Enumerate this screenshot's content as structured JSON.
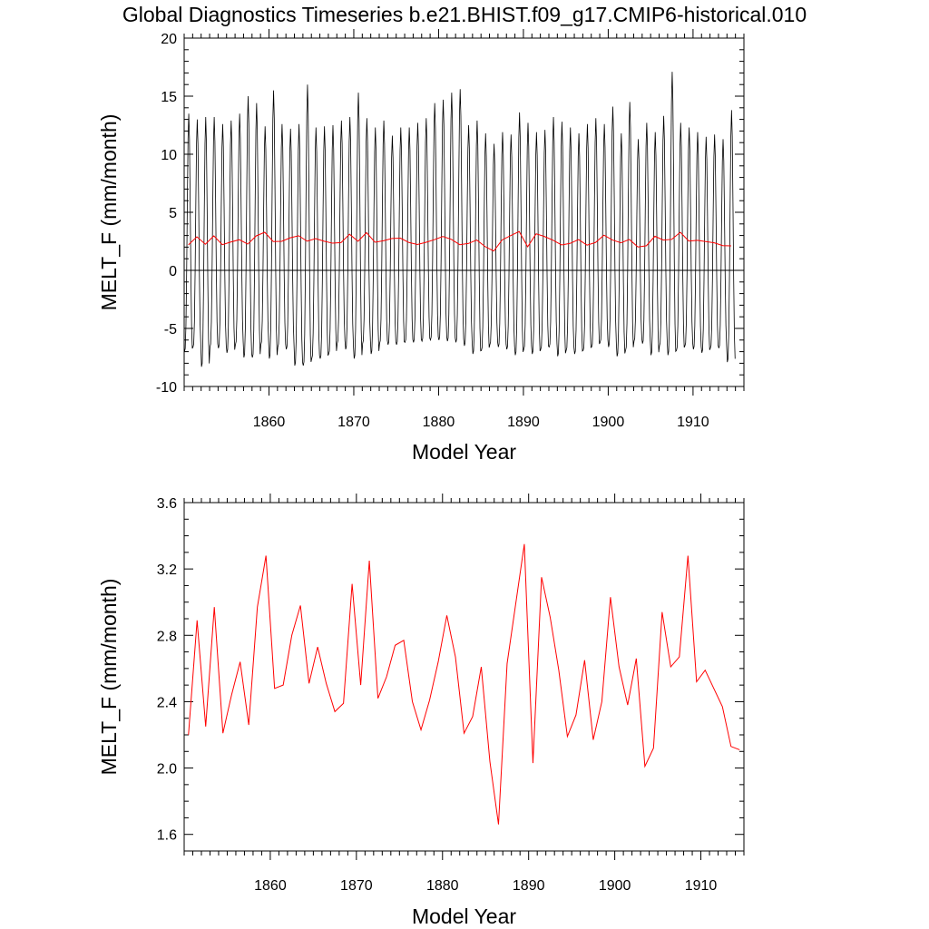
{
  "title": "Global Diagnostics Timeseries b.e21.BHIST.f09_g17.CMIP6-historical.010",
  "colors": {
    "monthly": "#000000",
    "annual": "#ff0000",
    "axes": "#000000"
  },
  "chart_data": [
    {
      "type": "line",
      "xlabel": "Model Year",
      "ylabel": "MELT_F (mm/month)",
      "xlim": [
        1850,
        1916
      ],
      "ylim": [
        -10,
        20
      ],
      "x_ticks": [
        1860,
        1870,
        1880,
        1890,
        1900,
        1910
      ],
      "x_tick_labels": [
        "1860",
        "1870",
        "1880",
        "1890",
        "1900",
        "1910"
      ],
      "y_ticks": [
        -10,
        -5,
        0,
        5,
        10,
        15,
        20
      ],
      "y_tick_labels": [
        "-10",
        "-5",
        "0",
        "5",
        "10",
        "15",
        "20"
      ],
      "zero_line": true,
      "series": [
        {
          "type": "seasonal-monthly",
          "x_start": 1850,
          "x_step": 0.08333,
          "note_values": "monthly values estimated: one peak and one trough per year",
          "annual_max": [
            13.5,
            13.0,
            13.2,
            13.2,
            12.6,
            12.9,
            13.5,
            15.0,
            14.4,
            12.4,
            15.5,
            12.6,
            12.2,
            12.6,
            16.0,
            12.3,
            12.4,
            12.5,
            12.9,
            13.2,
            15.3,
            13.1,
            12.3,
            12.9,
            11.6,
            12.3,
            12.3,
            12.7,
            13.1,
            14.4,
            14.7,
            15.3,
            15.6,
            12.5,
            12.9,
            11.8,
            10.9,
            11.9,
            11.7,
            13.6,
            12.7,
            11.9,
            12.1,
            13.2,
            12.8,
            12.3,
            11.8,
            12.6,
            13.1,
            12.6,
            14.1,
            11.8,
            14.5,
            11.3,
            12.7,
            11.9,
            13.3,
            17.1,
            12.7,
            12.3,
            11.9,
            11.5,
            11.7,
            11.3,
            13.8
          ],
          "annual_min": [
            -7.0,
            -6.6,
            -8.3,
            -6.6,
            -6.7,
            -7.1,
            -6.4,
            -7.5,
            -7.5,
            -6.4,
            -7.6,
            -6.6,
            -6.8,
            -8.2,
            -8.2,
            -7.6,
            -7.6,
            -7.2,
            -6.3,
            -6.8,
            -7.6,
            -6.3,
            -7.2,
            -6.3,
            -6.4,
            -6.4,
            -6.2,
            -6.2,
            -6.1,
            -6.0,
            -6.0,
            -6.1,
            -6.2,
            -6.5,
            -7.2,
            -6.9,
            -6.4,
            -6.6,
            -6.8,
            -7.3,
            -6.8,
            -7.2,
            -6.8,
            -6.6,
            -7.4,
            -6.9,
            -7.2,
            -6.9,
            -6.6,
            -6.2,
            -6.6,
            -7.4,
            -6.9,
            -6.1,
            -6.3,
            -7.3,
            -6.5,
            -7.3,
            -6.9,
            -6.5,
            -6.8,
            -7.1,
            -6.7,
            -6.7,
            -7.9
          ]
        },
        {
          "type": "annual-mean",
          "x": [
            1850.5,
            1851.5,
            1852.5,
            1853.5,
            1854.5,
            1855.5,
            1856.5,
            1857.5,
            1858.5,
            1859.5,
            1860.5,
            1861.5,
            1862.5,
            1863.5,
            1864.5,
            1865.5,
            1866.5,
            1867.5,
            1868.5,
            1869.5,
            1870.5,
            1871.5,
            1872.5,
            1873.5,
            1874.5,
            1875.5,
            1876.5,
            1877.5,
            1878.5,
            1879.5,
            1880.5,
            1881.5,
            1882.5,
            1883.5,
            1884.5,
            1885.5,
            1886.5,
            1887.5,
            1888.5,
            1889.5,
            1890.5,
            1891.5,
            1892.5,
            1893.5,
            1894.5,
            1895.5,
            1896.5,
            1897.5,
            1898.5,
            1899.5,
            1900.5,
            1901.5,
            1902.5,
            1903.5,
            1904.5,
            1905.5,
            1906.5,
            1907.5,
            1908.5,
            1909.5,
            1910.5,
            1911.5,
            1912.5,
            1913.5,
            1914.5
          ],
          "values": [
            2.2,
            2.89,
            2.25,
            2.97,
            2.21,
            2.44,
            2.64,
            2.26,
            2.97,
            3.28,
            2.48,
            2.5,
            2.8,
            2.98,
            2.51,
            2.73,
            2.51,
            2.34,
            2.39,
            3.11,
            2.5,
            3.25,
            2.42,
            2.55,
            2.74,
            2.77,
            2.4,
            2.23,
            2.41,
            2.64,
            2.92,
            2.67,
            2.21,
            2.31,
            2.61,
            2.04,
            1.66,
            2.63,
            2.99,
            3.35,
            2.03,
            3.15,
            2.91,
            2.59,
            2.19,
            2.32,
            2.65,
            2.17,
            2.4,
            3.03,
            2.61,
            2.38,
            2.66,
            2.01,
            2.12,
            2.94,
            2.61,
            2.67,
            3.28,
            2.52,
            2.59,
            2.48,
            2.37,
            2.13,
            2.11
          ]
        }
      ]
    },
    {
      "type": "line",
      "xlabel": "Model Year",
      "ylabel": "MELT_F (mm/month)",
      "xlim": [
        1850,
        1915
      ],
      "ylim": [
        1.5,
        3.6
      ],
      "x_ticks": [
        1860,
        1870,
        1880,
        1890,
        1900,
        1910
      ],
      "x_tick_labels": [
        "1860",
        "1870",
        "1880",
        "1890",
        "1900",
        "1910"
      ],
      "y_ticks": [
        1.6,
        2.0,
        2.4,
        2.8,
        3.2,
        3.6
      ],
      "y_tick_labels": [
        "1.6",
        "2.0",
        "2.4",
        "2.8",
        "3.2",
        "3.6"
      ],
      "series": [
        {
          "type": "annual-mean",
          "x": [
            1850.5,
            1851.5,
            1852.5,
            1853.5,
            1854.5,
            1855.5,
            1856.5,
            1857.5,
            1858.5,
            1859.5,
            1860.5,
            1861.5,
            1862.5,
            1863.5,
            1864.5,
            1865.5,
            1866.5,
            1867.5,
            1868.5,
            1869.5,
            1870.5,
            1871.5,
            1872.5,
            1873.5,
            1874.5,
            1875.5,
            1876.5,
            1877.5,
            1878.5,
            1879.5,
            1880.5,
            1881.5,
            1882.5,
            1883.5,
            1884.5,
            1885.5,
            1886.5,
            1887.5,
            1888.5,
            1889.5,
            1890.5,
            1891.5,
            1892.5,
            1893.5,
            1894.5,
            1895.5,
            1896.5,
            1897.5,
            1898.5,
            1899.5,
            1900.5,
            1901.5,
            1902.5,
            1903.5,
            1904.5,
            1905.5,
            1906.5,
            1907.5,
            1908.5,
            1909.5,
            1910.5,
            1911.5,
            1912.5,
            1913.5,
            1914.5
          ],
          "values": [
            2.2,
            2.89,
            2.25,
            2.97,
            2.21,
            2.44,
            2.64,
            2.26,
            2.97,
            3.28,
            2.48,
            2.5,
            2.8,
            2.98,
            2.51,
            2.73,
            2.51,
            2.34,
            2.39,
            3.11,
            2.5,
            3.25,
            2.42,
            2.55,
            2.74,
            2.77,
            2.4,
            2.23,
            2.41,
            2.64,
            2.92,
            2.67,
            2.21,
            2.31,
            2.61,
            2.04,
            1.66,
            2.63,
            2.99,
            3.35,
            2.03,
            3.15,
            2.91,
            2.59,
            2.19,
            2.32,
            2.65,
            2.17,
            2.4,
            3.03,
            2.61,
            2.38,
            2.66,
            2.01,
            2.12,
            2.94,
            2.61,
            2.67,
            3.28,
            2.52,
            2.59,
            2.48,
            2.37,
            2.13,
            2.11
          ]
        }
      ]
    }
  ]
}
